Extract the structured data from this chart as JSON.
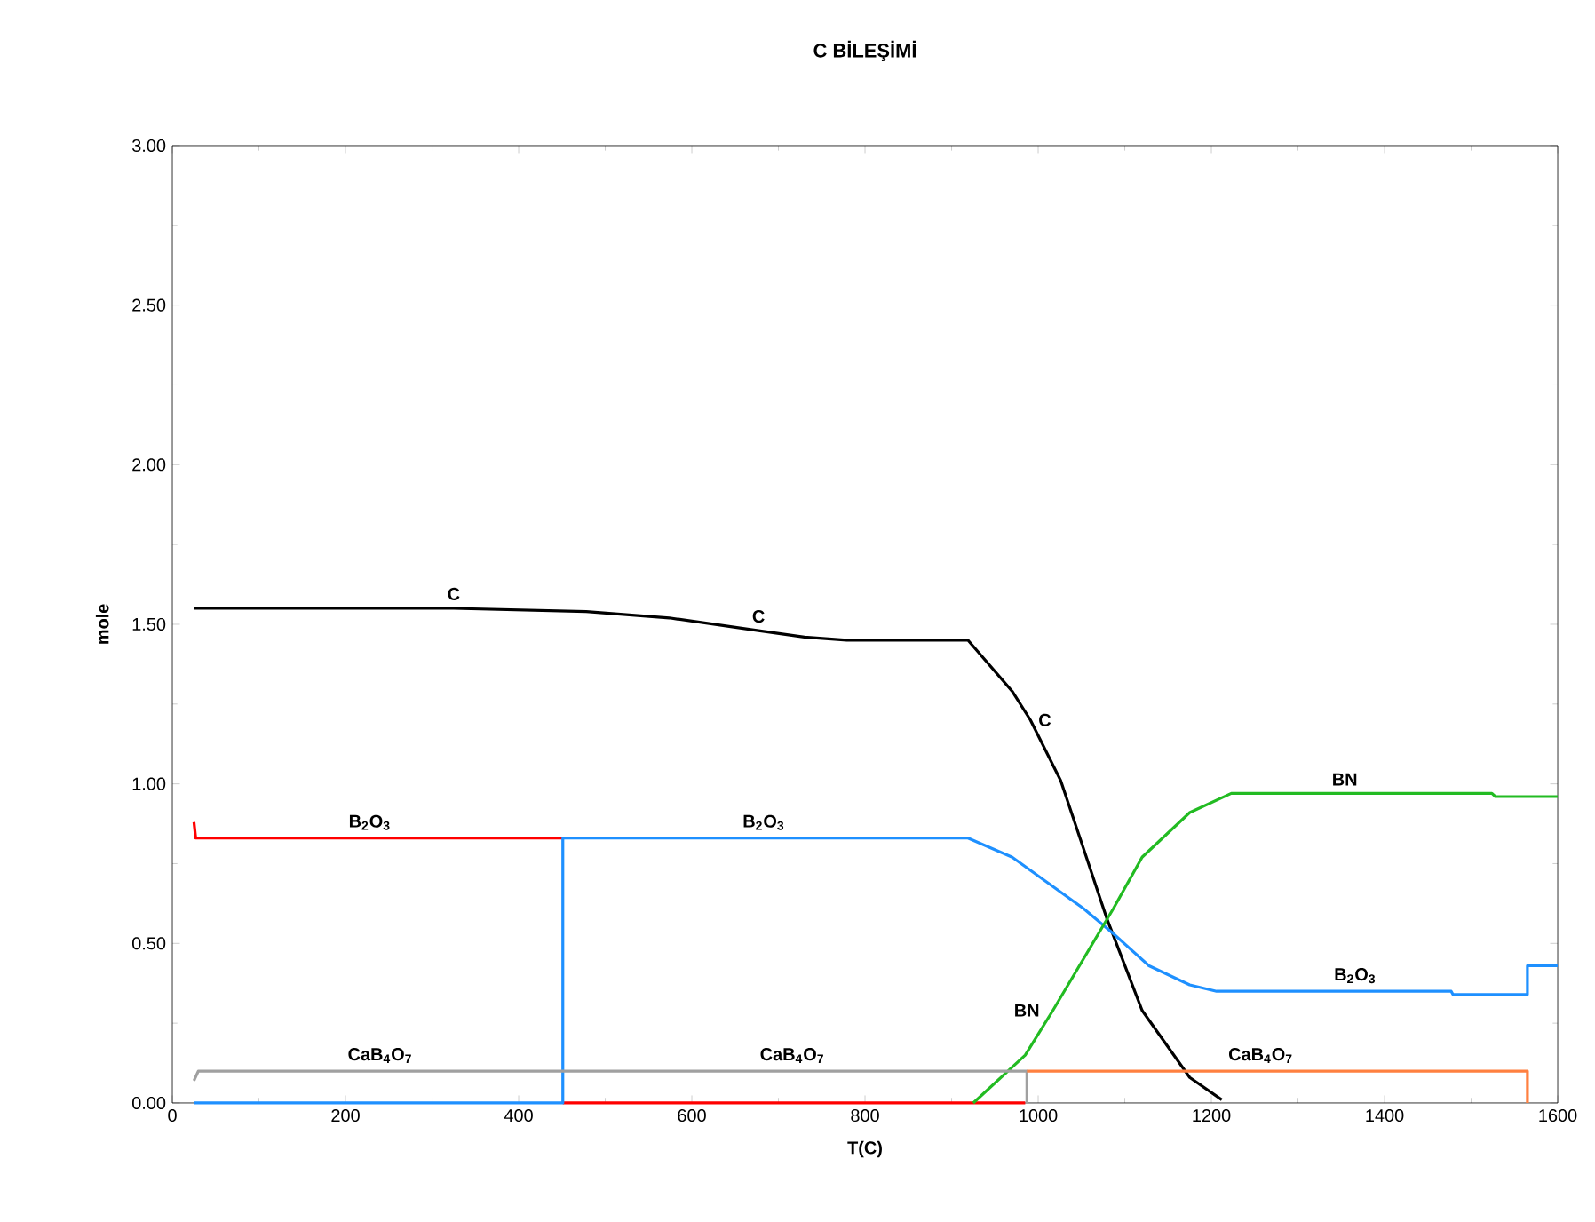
{
  "chart_data": {
    "type": "line",
    "title": "C BİLEŞİMİ",
    "xlabel": "T(C)",
    "ylabel": "mole",
    "xlim": [
      0,
      1600
    ],
    "ylim": [
      0,
      3
    ],
    "xticks": [
      0,
      200,
      400,
      600,
      800,
      1000,
      1200,
      1400,
      1600
    ],
    "yticks": [
      {
        "value": 0,
        "label": "0.00"
      },
      {
        "value": 0.5,
        "label": "0.50"
      },
      {
        "value": 1,
        "label": "1.00"
      },
      {
        "value": 1.5,
        "label": "1.50"
      },
      {
        "value": 2,
        "label": "2.00"
      },
      {
        "value": 2.5,
        "label": "2.50"
      },
      {
        "value": 3,
        "label": "3.00"
      }
    ],
    "grid": false,
    "marker": "none",
    "line_style": "solid",
    "series": [
      {
        "color": "#000000",
        "x": [
          25,
          325,
          478,
          574,
          677,
          730,
          779,
          919,
          970,
          991,
          1026,
          1052,
          1079,
          1120,
          1175,
          1212
        ],
        "values": [
          1.55,
          1.55,
          1.54,
          1.52,
          1.48,
          1.46,
          1.45,
          1.45,
          1.29,
          1.2,
          1.01,
          0.8,
          0.58,
          0.29,
          0.08,
          0.01
        ]
      },
      {
        "color": "#ff0000",
        "x": [
          25,
          27,
          228,
          451
        ],
        "values": [
          0.88,
          0.83,
          0.83,
          0.83
        ]
      },
      {
        "color": "#ff0000",
        "x": [
          451,
          985
        ],
        "values": [
          0,
          0
        ]
      },
      {
        "color": "#1e90ff",
        "x": [
          25,
          451,
          451,
          683,
          919,
          970,
          1011,
          1052,
          1087,
          1128,
          1175,
          1206,
          1366,
          1477,
          1479,
          1565,
          1565,
          1600
        ],
        "values": [
          0,
          0,
          0.83,
          0.83,
          0.83,
          0.77,
          0.69,
          0.61,
          0.53,
          0.43,
          0.37,
          0.35,
          0.35,
          0.35,
          0.34,
          0.34,
          0.43,
          0.43
        ]
      },
      {
        "color": "#22bb22",
        "x": [
          925,
          985,
          1017,
          1052,
          1087,
          1120,
          1175,
          1223,
          1354,
          1524,
          1528,
          1600
        ],
        "values": [
          0,
          0.15,
          0.29,
          0.45,
          0.61,
          0.77,
          0.91,
          0.97,
          0.97,
          0.97,
          0.96,
          0.96
        ]
      },
      {
        "color": "#a0a0a0",
        "x": [
          25,
          30,
          240,
          716,
          987,
          987
        ],
        "values": [
          0.07,
          0.1,
          0.1,
          0.1,
          0.1,
          0
        ]
      },
      {
        "color": "#ff8040",
        "x": [
          987,
          1257,
          1565,
          1565
        ],
        "values": [
          0.1,
          0.1,
          0.1,
          0
        ]
      }
    ],
    "annotations": [
      {
        "text": "C",
        "x": 325,
        "y": 1.55
      },
      {
        "text": "C",
        "x": 677,
        "y": 1.48
      },
      {
        "text": "C",
        "x": 991,
        "y": 1.2
      },
      {
        "text": "B$_{2}$O$_{3}$",
        "x": 228,
        "y": 0.83
      },
      {
        "text": "B$_{2}$O$_{3}$",
        "x": 683,
        "y": 0.83
      },
      {
        "text": "B$_{2}$O$_{3}$",
        "x": 1366,
        "y": 0.35
      },
      {
        "text": "BN",
        "x": 1017,
        "y": 0.29
      },
      {
        "text": "BN",
        "x": 1354,
        "y": 0.97
      },
      {
        "text": "CaB$_{4}$O$_{7}$",
        "x": 240,
        "y": 0.1
      },
      {
        "text": "CaB$_{4}$O$_{7}$",
        "x": 716,
        "y": 0.1
      },
      {
        "text": "CaB$_{4}$O$_{7}$",
        "x": 1257,
        "y": 0.1
      }
    ]
  }
}
